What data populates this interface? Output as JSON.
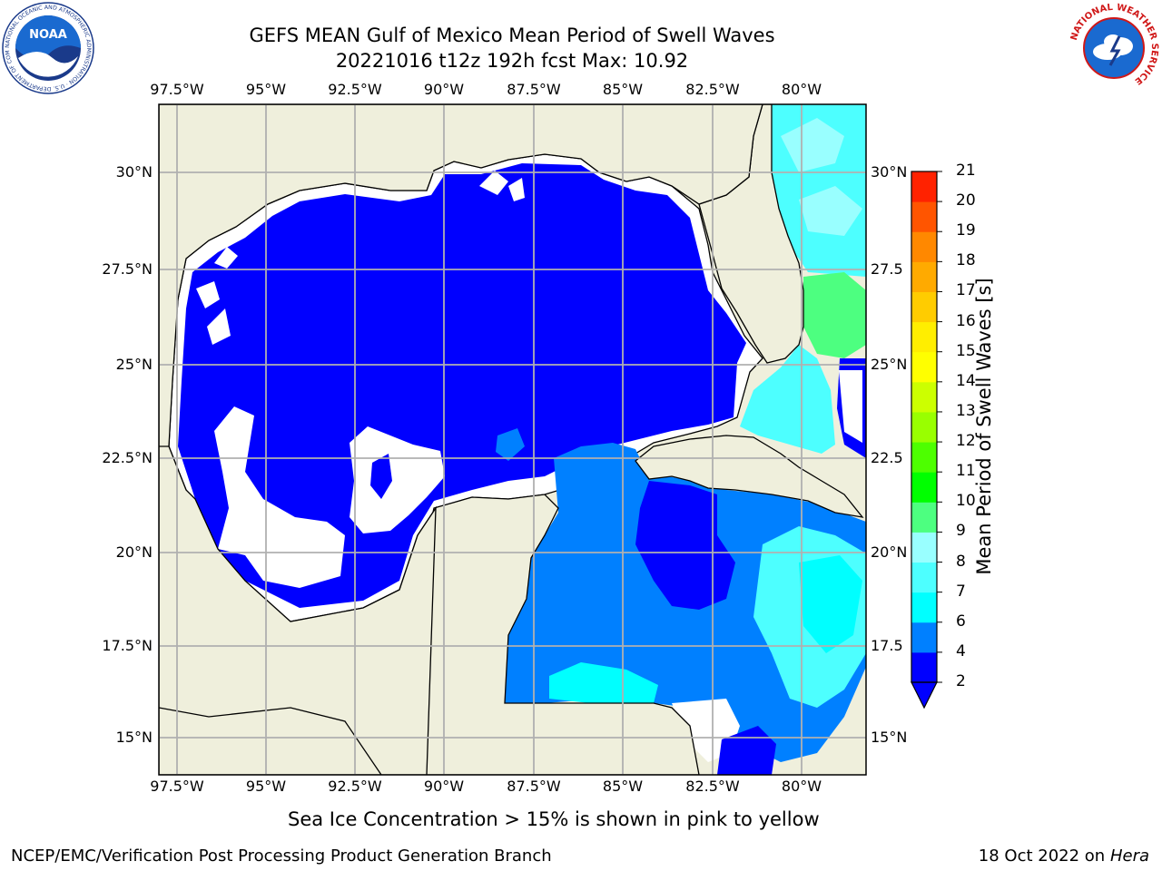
{
  "header": {
    "title_line1": "GEFS MEAN Gulf of Mexico Mean Period of Swell Waves",
    "title_line2": "20221016 t12z 192h fcst   Max: 10.92"
  },
  "logos": {
    "left": "noaa-logo",
    "left_ring_text": "NATIONAL OCEANIC AND ATMOSPHERIC ADMINISTRATION · U.S. DEPARTMENT OF COMMERCE",
    "left_center_text": "NOAA",
    "right": "nws-logo",
    "right_ring_text": "NATIONAL WEATHER SERVICE"
  },
  "map": {
    "lon_labels": [
      "97.5°W",
      "95°W",
      "92.5°W",
      "90°W",
      "87.5°W",
      "85°W",
      "82.5°W",
      "80°W"
    ],
    "lat_labels_left": [
      "30°N",
      "27.5°N",
      "25°N",
      "22.5°N",
      "20°N",
      "17.5°N",
      "15°N"
    ],
    "lat_labels_right": [
      "30°N",
      "27.5",
      "25°N",
      "22.5",
      "20°N",
      "17.5",
      "15°N"
    ],
    "colors": {
      "land": "#efefdc",
      "undefined": "#ffffff",
      "grid": "#b0b0b0",
      "coast": "#000000"
    }
  },
  "colorbar": {
    "label": "Mean Period of Swell Waves [s]",
    "ticks": [
      "2",
      "4",
      "6",
      "7",
      "8",
      "9",
      "10",
      "11",
      "12",
      "13",
      "14",
      "15",
      "16",
      "17",
      "18",
      "19",
      "20",
      "21"
    ],
    "colors": [
      "#0000ff",
      "#0080ff",
      "#00ffff",
      "#4dffff",
      "#99ffff",
      "#4dff80",
      "#00ff00",
      "#4dff00",
      "#99ff00",
      "#ccff00",
      "#ffff00",
      "#ffee00",
      "#ffcc00",
      "#ffaa00",
      "#ff8800",
      "#ff5500",
      "#ff2200",
      "#ff0000"
    ]
  },
  "note": "Sea Ice Concentration > 15% is shown in pink to yellow",
  "footer": {
    "left": "NCEP/EMC/Verification Post Processing Product Generation Branch",
    "date": "18 Oct 2022 on ",
    "machine": "Hera"
  }
}
